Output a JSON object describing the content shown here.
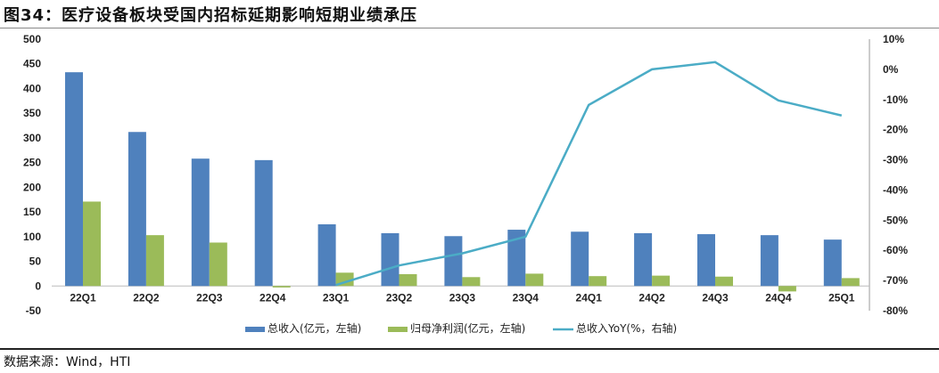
{
  "title": "图34：医疗设备板块受国内招标延期影响短期业绩承压",
  "source": "数据来源：Wind，HTI",
  "colors": {
    "revenue": "#4F81BD",
    "profit": "#9BBB59",
    "yoy": "#4BACC6"
  },
  "chart_data": {
    "type": "bar",
    "categories": [
      "22Q1",
      "22Q2",
      "22Q3",
      "22Q4",
      "23Q1",
      "23Q2",
      "23Q3",
      "23Q4",
      "24Q1",
      "24Q2",
      "24Q3",
      "24Q4",
      "25Q1"
    ],
    "series": [
      {
        "name": "总收入(亿元，左轴)",
        "type": "bar",
        "axis": "left",
        "values": [
          433,
          312,
          258,
          255,
          125,
          107,
          101,
          114,
          110,
          107,
          105,
          103,
          94
        ]
      },
      {
        "name": "归母净利润(亿元，左轴)",
        "type": "bar",
        "axis": "left",
        "values": [
          171,
          103,
          88,
          -3,
          27,
          24,
          18,
          25,
          20,
          21,
          19,
          -11,
          16
        ]
      },
      {
        "name": "总收入YoY(%，右轴)",
        "type": "line",
        "axis": "right",
        "values": [
          null,
          null,
          null,
          null,
          -71.5,
          -65,
          -61,
          -55.5,
          -11.8,
          0,
          2.4,
          -10.3,
          -15.3
        ]
      }
    ],
    "left_axis": {
      "range": [
        -50,
        500
      ],
      "ticks": [
        "-50",
        "0",
        "50",
        "100",
        "150",
        "200",
        "250",
        "300",
        "350",
        "400",
        "450",
        "500"
      ]
    },
    "right_axis": {
      "range": [
        -80,
        10
      ],
      "ticks": [
        "-80%",
        "-70%",
        "-60%",
        "-50%",
        "-40%",
        "-30%",
        "-20%",
        "-10%",
        "0%",
        "10%"
      ]
    },
    "grid": false,
    "legend_position": "bottom"
  }
}
